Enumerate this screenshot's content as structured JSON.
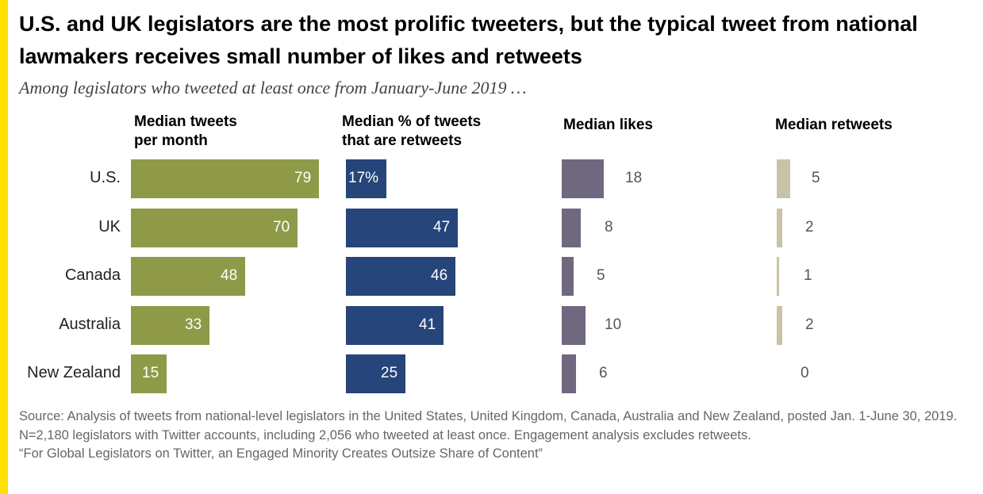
{
  "title": "U.S. and UK legislators are the most prolific tweeters, but the typical tweet from national lawmakers receives small number of likes and retweets",
  "subtitle": "Among legislators who tweeted at least once from January-June 2019 …",
  "source": "Source: Analysis of tweets from national-level legislators in the United States, United Kingdom, Canada, Australia and New Zealand, posted Jan. 1-June 30, 2019. N=2,180 legislators with Twitter accounts, including 2,056 who tweeted at least once. Engagement analysis excludes retweets.",
  "report_title": "“For Global Legislators on Twitter, an Engaged Minority Creates Outsize Share of Content”",
  "colors": {
    "accent": "#FFE000",
    "tweets": "#8F9A48",
    "retweet_pct": "#26457A",
    "likes": "#70687E",
    "retweets": "#C9C3A4"
  },
  "chart_data": {
    "type": "bar",
    "orientation": "horizontal",
    "categories": [
      "U.S.",
      "UK",
      "Canada",
      "Australia",
      "New Zealand"
    ],
    "series": [
      {
        "name": "Median tweets\nper month",
        "values": [
          79,
          70,
          48,
          33,
          15
        ],
        "labels": [
          "79",
          "70",
          "48",
          "33",
          "15"
        ]
      },
      {
        "name": "Median % of tweets\n that are retweets",
        "values": [
          17,
          47,
          46,
          41,
          25
        ],
        "labels": [
          "17%",
          "47",
          "46",
          "41",
          "25"
        ]
      },
      {
        "name": "Median likes",
        "values": [
          18,
          8,
          5,
          10,
          6
        ],
        "labels": [
          "18",
          "8",
          "5",
          "10",
          "6"
        ]
      },
      {
        "name": "Median retweets",
        "values": [
          5,
          2,
          1,
          2,
          0
        ],
        "labels": [
          "5",
          "2",
          "1",
          "2",
          "0"
        ]
      }
    ]
  }
}
